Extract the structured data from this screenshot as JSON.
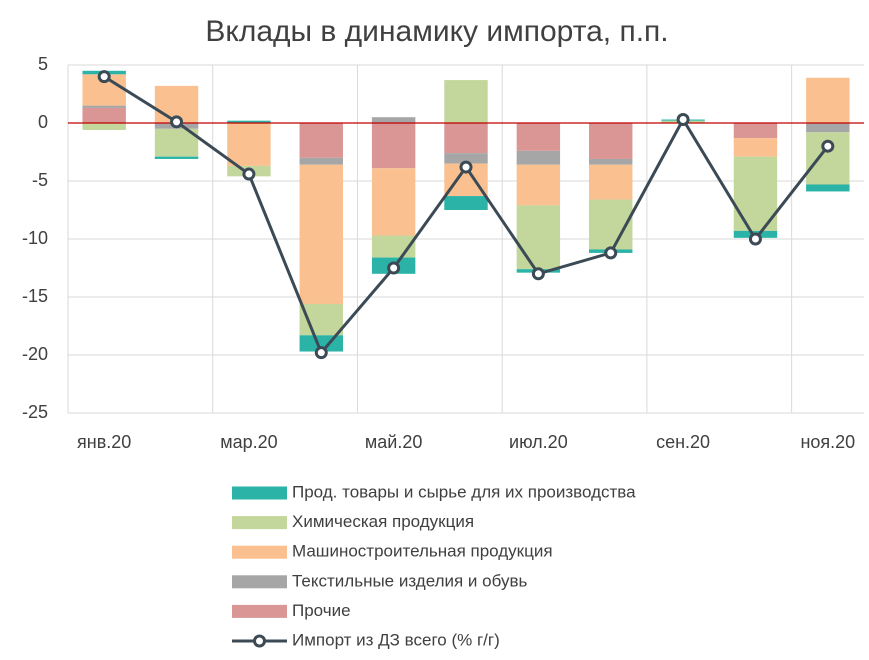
{
  "chart_data": {
    "type": "bar",
    "title": "Вклады в динамику импорта, п.п.",
    "categories": [
      "янв.20",
      null,
      "мар.20",
      null,
      "май.20",
      null,
      "июл.20",
      null,
      "сен.20",
      null,
      "ноя.20"
    ],
    "series": [
      {
        "name": "Прод. товары и сырье для их производства",
        "color": "#2ab3a6",
        "values": [
          0.3,
          -0.2,
          0.2,
          -1.4,
          -1.4,
          -1.2,
          -0.3,
          -0.3,
          0.1,
          -0.6,
          -0.6
        ]
      },
      {
        "name": "Химическая продукция",
        "color": "#c3d69b",
        "values": [
          -0.6,
          -2.4,
          -0.9,
          -2.7,
          -1.9,
          3.7,
          -5.5,
          -4.3,
          0.2,
          -6.4,
          -4.5
        ]
      },
      {
        "name": "Машиностроительная продукция",
        "color": "#fac090",
        "values": [
          2.7,
          3.2,
          -3.7,
          -12.0,
          -5.8,
          -2.8,
          -3.5,
          -3.0,
          0,
          -1.6,
          3.9
        ]
      },
      {
        "name": "Текстильные изделия и обувь",
        "color": "#a6a6a6",
        "values": [
          0.2,
          -0.5,
          0,
          -0.6,
          0.5,
          -0.9,
          -1.2,
          -0.5,
          0,
          0,
          -0.8
        ]
      },
      {
        "name": "Прочие",
        "color": "#d99694",
        "values": [
          1.3,
          0,
          0,
          -3.0,
          -3.9,
          -2.6,
          -2.4,
          -3.1,
          0,
          -1.3,
          0
        ]
      },
      {
        "name": "Импорт из ДЗ всего (% г/г)",
        "type": "line",
        "color": "#3b4a55",
        "values": [
          4.0,
          0.1,
          -4.4,
          -19.8,
          -12.5,
          -3.8,
          -13.0,
          -11.2,
          0.3,
          -10.0,
          -2.0
        ]
      }
    ],
    "ylim": [
      -25,
      5
    ],
    "yticks": [
      -25,
      -20,
      -15,
      -10,
      -5,
      0,
      5
    ],
    "grid": true,
    "stacked": true,
    "legend": "bottom"
  }
}
